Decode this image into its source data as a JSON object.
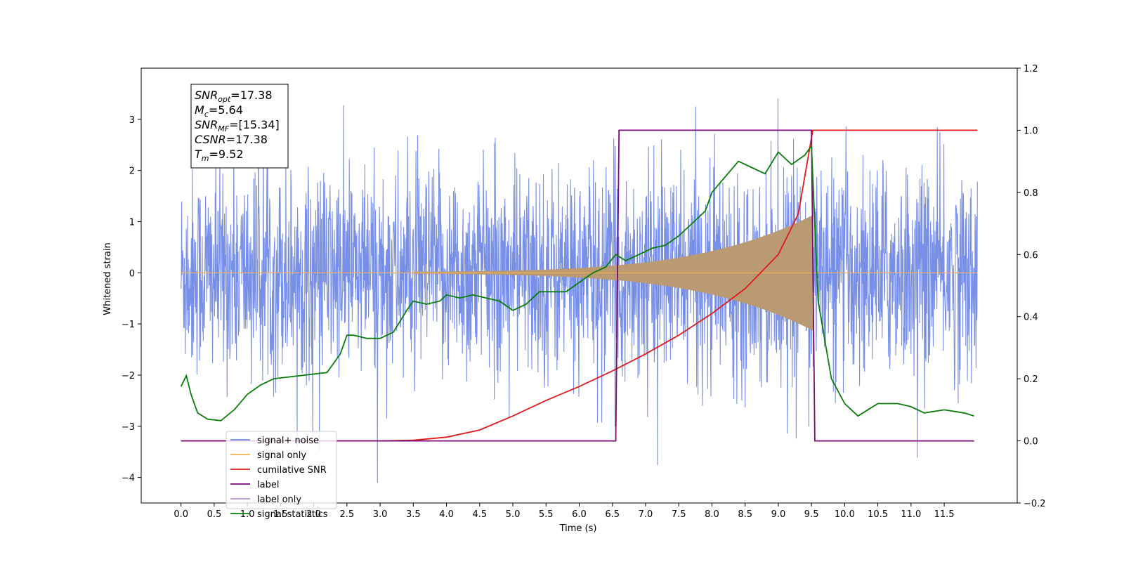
{
  "chart_data": {
    "type": "line",
    "xlabel": "Time (s)",
    "ylabel": "Whitened strain",
    "xlim": [
      -0.6,
      12.6
    ],
    "ylim": [
      -4.5,
      4.0
    ],
    "y2lim": [
      -0.2,
      1.2
    ],
    "x_ticks": [
      "0.0",
      "0.5",
      "1.0",
      "1.5",
      "2.0",
      "2.5",
      "3.0",
      "3.5",
      "4.0",
      "4.5",
      "5.0",
      "5.5",
      "6.0",
      "6.5",
      "7.0",
      "7.5",
      "8.0",
      "8.5",
      "9.0",
      "9.5",
      "10.0",
      "10.5",
      "11.0",
      "11.5"
    ],
    "y_ticks": [
      "3",
      "2",
      "1",
      "0",
      "−1",
      "−2",
      "−3",
      "−4"
    ],
    "y_tick_values": [
      3,
      2,
      1,
      0,
      -1,
      -2,
      -3,
      -4
    ],
    "y2_ticks": [
      "1.2",
      "1.0",
      "0.8",
      "0.6",
      "0.4",
      "0.2",
      "0.0",
      "−0.2"
    ],
    "y2_tick_values": [
      1.2,
      1.0,
      0.8,
      0.6,
      0.4,
      0.2,
      0.0,
      -0.2
    ],
    "grid": false,
    "legend_position": "lower-left",
    "series": [
      {
        "name": "signal+ noise",
        "color": "#6b86e5",
        "axis": "left",
        "description_values": "whitened noise, amplitude approx ±2.5 with spikes to ±3.5, x 0.0–12.0"
      },
      {
        "name": "signal only",
        "color": "#f2b24d",
        "axis": "left",
        "chirp": {
          "t_start": 3.5,
          "t_merger": 9.52,
          "amp_start": 0.02,
          "amp_peak": 1.1
        }
      },
      {
        "name": "cumilative SNR",
        "color": "#e01b1b",
        "axis": "right",
        "x": [
          0.0,
          3.0,
          3.5,
          4.0,
          4.5,
          5.0,
          5.5,
          6.0,
          6.5,
          7.0,
          7.5,
          8.0,
          8.5,
          9.0,
          9.3,
          9.52,
          12.0
        ],
        "values": [
          0.0,
          0.0,
          0.002,
          0.012,
          0.035,
          0.08,
          0.13,
          0.175,
          0.225,
          0.28,
          0.34,
          0.41,
          0.49,
          0.6,
          0.73,
          1.0,
          1.0
        ]
      },
      {
        "name": "label",
        "color": "#7a0a7a",
        "axis": "right",
        "x": [
          0.0,
          6.55,
          6.6,
          9.5,
          9.55,
          11.95
        ],
        "values": [
          0.0,
          0.0,
          1.0,
          1.0,
          0.0,
          0.0
        ]
      },
      {
        "name": "label only",
        "color": "#b88fd6",
        "axis": "right",
        "x": [],
        "values": []
      },
      {
        "name": "signal statistics",
        "color": "#0a7d0a",
        "axis": "right",
        "x": [
          0.0,
          0.08,
          0.15,
          0.25,
          0.4,
          0.6,
          0.8,
          1.0,
          1.2,
          1.4,
          1.6,
          1.8,
          2.0,
          2.2,
          2.4,
          2.5,
          2.6,
          2.8,
          3.0,
          3.2,
          3.4,
          3.5,
          3.7,
          3.9,
          4.0,
          4.2,
          4.4,
          4.6,
          4.8,
          5.0,
          5.2,
          5.4,
          5.6,
          5.8,
          6.0,
          6.2,
          6.4,
          6.55,
          6.7,
          6.9,
          7.1,
          7.3,
          7.5,
          7.7,
          7.9,
          8.0,
          8.2,
          8.4,
          8.6,
          8.8,
          9.0,
          9.2,
          9.4,
          9.5,
          9.6,
          9.8,
          10.0,
          10.2,
          10.5,
          10.8,
          11.0,
          11.2,
          11.5,
          11.8,
          11.95
        ],
        "values": [
          0.175,
          0.21,
          0.15,
          0.09,
          0.07,
          0.065,
          0.1,
          0.15,
          0.18,
          0.2,
          0.205,
          0.21,
          0.215,
          0.22,
          0.28,
          0.34,
          0.34,
          0.33,
          0.33,
          0.35,
          0.42,
          0.45,
          0.44,
          0.45,
          0.47,
          0.46,
          0.47,
          0.46,
          0.45,
          0.42,
          0.44,
          0.48,
          0.48,
          0.48,
          0.51,
          0.54,
          0.56,
          0.6,
          0.58,
          0.6,
          0.62,
          0.63,
          0.66,
          0.7,
          0.74,
          0.8,
          0.85,
          0.9,
          0.88,
          0.86,
          0.93,
          0.89,
          0.92,
          0.95,
          0.45,
          0.2,
          0.12,
          0.08,
          0.12,
          0.12,
          0.11,
          0.09,
          0.1,
          0.09,
          0.08
        ]
      }
    ],
    "annotation": {
      "lines": [
        {
          "label": "SNR",
          "sub": "opt",
          "value": "=17.38"
        },
        {
          "label": "M",
          "sub": "c",
          "value": "=5.64"
        },
        {
          "label": "SNR",
          "sub": "MF",
          "value": "=[15.34]"
        },
        {
          "label": "CSNR",
          "sub": "",
          "value": "=17.38"
        },
        {
          "label": "T",
          "sub": "m",
          "value": "=9.52"
        }
      ]
    }
  }
}
